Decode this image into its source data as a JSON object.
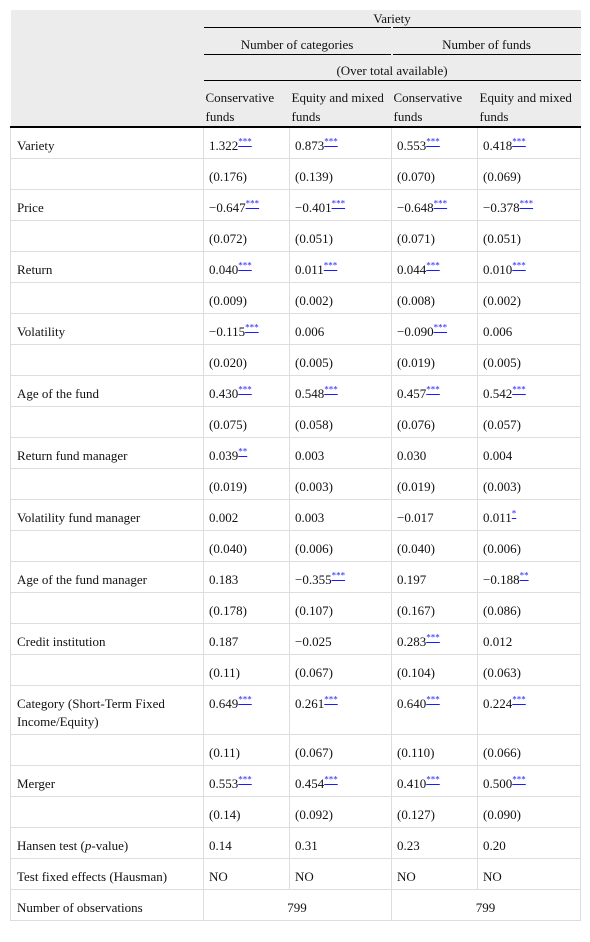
{
  "header": {
    "title": "Variety",
    "groups": [
      "Number of categories",
      "Number of funds"
    ],
    "note": "(Over total available)",
    "columns": [
      "Conservative funds",
      "Equity and mixed funds",
      "Conservative funds",
      "Equity and mixed funds"
    ]
  },
  "rows": [
    {
      "label": "Variety",
      "cells": [
        {
          "value": "1.322",
          "stars": "***"
        },
        {
          "value": "0.873",
          "stars": "***"
        },
        {
          "value": "0.553",
          "stars": "***"
        },
        {
          "value": "0.418",
          "stars": "***"
        }
      ]
    },
    {
      "cells": [
        {
          "value": "(0.176)"
        },
        {
          "value": "(0.139)"
        },
        {
          "value": "(0.070)"
        },
        {
          "value": "(0.069)"
        }
      ]
    },
    {
      "label": "Price",
      "cells": [
        {
          "value": "−0.647",
          "stars": "***"
        },
        {
          "value": "−0.401",
          "stars": "***"
        },
        {
          "value": "−0.648",
          "stars": "***"
        },
        {
          "value": "−0.378",
          "stars": "***"
        }
      ]
    },
    {
      "cells": [
        {
          "value": "(0.072)"
        },
        {
          "value": "(0.051)"
        },
        {
          "value": "(0.071)"
        },
        {
          "value": "(0.051)"
        }
      ]
    },
    {
      "label": "Return",
      "cells": [
        {
          "value": "0.040",
          "stars": "***"
        },
        {
          "value": "0.011",
          "stars": "***"
        },
        {
          "value": "0.044",
          "stars": "***"
        },
        {
          "value": "0.010",
          "stars": "***"
        }
      ]
    },
    {
      "cells": [
        {
          "value": "(0.009)"
        },
        {
          "value": "(0.002)"
        },
        {
          "value": "(0.008)"
        },
        {
          "value": "(0.002)"
        }
      ]
    },
    {
      "label": "Volatility",
      "cells": [
        {
          "value": "−0.115",
          "stars": "***"
        },
        {
          "value": "0.006"
        },
        {
          "value": "−0.090",
          "stars": "***"
        },
        {
          "value": "0.006"
        }
      ]
    },
    {
      "cells": [
        {
          "value": "(0.020)"
        },
        {
          "value": "(0.005)"
        },
        {
          "value": "(0.019)"
        },
        {
          "value": "(0.005)"
        }
      ]
    },
    {
      "label": "Age of the fund",
      "cells": [
        {
          "value": "0.430",
          "stars": "***"
        },
        {
          "value": "0.548",
          "stars": "***"
        },
        {
          "value": "0.457",
          "stars": "***"
        },
        {
          "value": "0.542",
          "stars": "***"
        }
      ]
    },
    {
      "cells": [
        {
          "value": "(0.075)"
        },
        {
          "value": "(0.058)"
        },
        {
          "value": "(0.076)"
        },
        {
          "value": "(0.057)"
        }
      ]
    },
    {
      "label": "Return fund manager",
      "cells": [
        {
          "value": "0.039",
          "stars": "**"
        },
        {
          "value": "0.003"
        },
        {
          "value": "0.030"
        },
        {
          "value": "0.004"
        }
      ]
    },
    {
      "cells": [
        {
          "value": "(0.019)"
        },
        {
          "value": "(0.003)"
        },
        {
          "value": "(0.019)"
        },
        {
          "value": "(0.003)"
        }
      ]
    },
    {
      "label": "Volatility fund manager",
      "cells": [
        {
          "value": "0.002"
        },
        {
          "value": "0.003"
        },
        {
          "value": "−0.017"
        },
        {
          "value": "0.011",
          "stars": "*"
        }
      ]
    },
    {
      "cells": [
        {
          "value": "(0.040)"
        },
        {
          "value": "(0.006)"
        },
        {
          "value": "(0.040)"
        },
        {
          "value": "(0.006)"
        }
      ]
    },
    {
      "label": "Age of the fund manager",
      "cells": [
        {
          "value": "0.183"
        },
        {
          "value": "−0.355",
          "stars": "***"
        },
        {
          "value": "0.197"
        },
        {
          "value": "−0.188",
          "stars": "**"
        }
      ]
    },
    {
      "cells": [
        {
          "value": "(0.178)"
        },
        {
          "value": "(0.107)"
        },
        {
          "value": "(0.167)"
        },
        {
          "value": "(0.086)"
        }
      ]
    },
    {
      "label": "Credit institution",
      "cells": [
        {
          "value": "0.187"
        },
        {
          "value": "−0.025"
        },
        {
          "value": "0.283",
          "stars": "***"
        },
        {
          "value": "0.012"
        }
      ]
    },
    {
      "cells": [
        {
          "value": "(0.11)"
        },
        {
          "value": "(0.067)"
        },
        {
          "value": "(0.104)"
        },
        {
          "value": "(0.063)"
        }
      ]
    },
    {
      "label": "Category (Short-Term Fixed Income/Equity)",
      "cells": [
        {
          "value": "0.649",
          "stars": "***"
        },
        {
          "value": "0.261",
          "stars": "***"
        },
        {
          "value": "0.640",
          "stars": "***"
        },
        {
          "value": "0.224",
          "stars": "***"
        }
      ]
    },
    {
      "cells": [
        {
          "value": "(0.11)"
        },
        {
          "value": "(0.067)"
        },
        {
          "value": "(0.110)"
        },
        {
          "value": "(0.066)"
        }
      ]
    },
    {
      "label": "Merger",
      "cells": [
        {
          "value": "0.553",
          "stars": "***"
        },
        {
          "value": "0.454",
          "stars": "***"
        },
        {
          "value": "0.410",
          "stars": "***"
        },
        {
          "value": "0.500",
          "stars": "***"
        }
      ]
    },
    {
      "cells": [
        {
          "value": "(0.14)"
        },
        {
          "value": "(0.092)"
        },
        {
          "value": "(0.127)"
        },
        {
          "value": "(0.090)"
        }
      ]
    },
    {
      "label": [
        "Hansen test (",
        "p",
        "-value)"
      ],
      "cells": [
        {
          "value": "0.14"
        },
        {
          "value": "0.31"
        },
        {
          "value": "0.23"
        },
        {
          "value": "0.20"
        }
      ]
    },
    {
      "label": "Test fixed effects (Hausman)",
      "cells": [
        {
          "value": "NO"
        },
        {
          "value": "NO"
        },
        {
          "value": "NO"
        },
        {
          "value": "NO"
        }
      ]
    },
    {
      "label": "Number of observations",
      "cells": [
        {
          "value": "799"
        },
        {
          "value": "799"
        }
      ]
    }
  ]
}
